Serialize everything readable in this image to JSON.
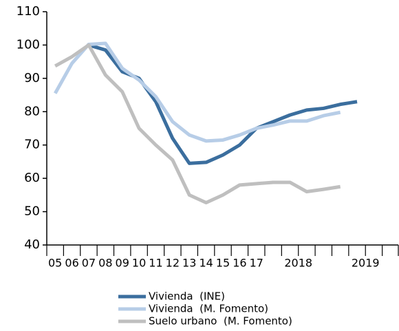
{
  "chart_data": {
    "type": "line",
    "categories": [
      "05",
      "06",
      "07",
      "08",
      "09",
      "10",
      "11",
      "12",
      "13",
      "14",
      "15",
      "16",
      "17",
      null,
      "2018",
      null,
      null,
      null,
      "2019",
      null,
      null
    ],
    "series": [
      {
        "name": "Vivienda  (INE)",
        "color": "#3b6e9e",
        "values": [
          null,
          null,
          100,
          98.5,
          92,
          90,
          83,
          72,
          64.5,
          64.8,
          67,
          70,
          75,
          77,
          79,
          80.5,
          81,
          82.2,
          83,
          null,
          null
        ]
      },
      {
        "name": "Vivienda  (M. Fomento)",
        "color": "#b7cde7",
        "values": [
          85.5,
          94.5,
          100.2,
          100.5,
          93,
          89.5,
          84.5,
          77,
          73,
          71.2,
          71.5,
          73,
          75,
          76,
          77.2,
          77.2,
          78.8,
          79.8,
          null,
          null,
          null
        ]
      },
      {
        "name": "Suelo urbano  (M. Fomento)",
        "color": "#bfbfbf",
        "values": [
          93.7,
          96.5,
          100,
          91,
          86,
          75,
          70,
          65.5,
          55,
          52.7,
          55,
          58,
          58.4,
          58.8,
          58.8,
          56,
          56.7,
          57.5,
          null,
          null,
          null
        ]
      }
    ],
    "ylim": [
      40,
      110
    ],
    "yticks": [
      40,
      50,
      60,
      70,
      80,
      90,
      100,
      110
    ],
    "grid": false,
    "legend": "bottom"
  }
}
